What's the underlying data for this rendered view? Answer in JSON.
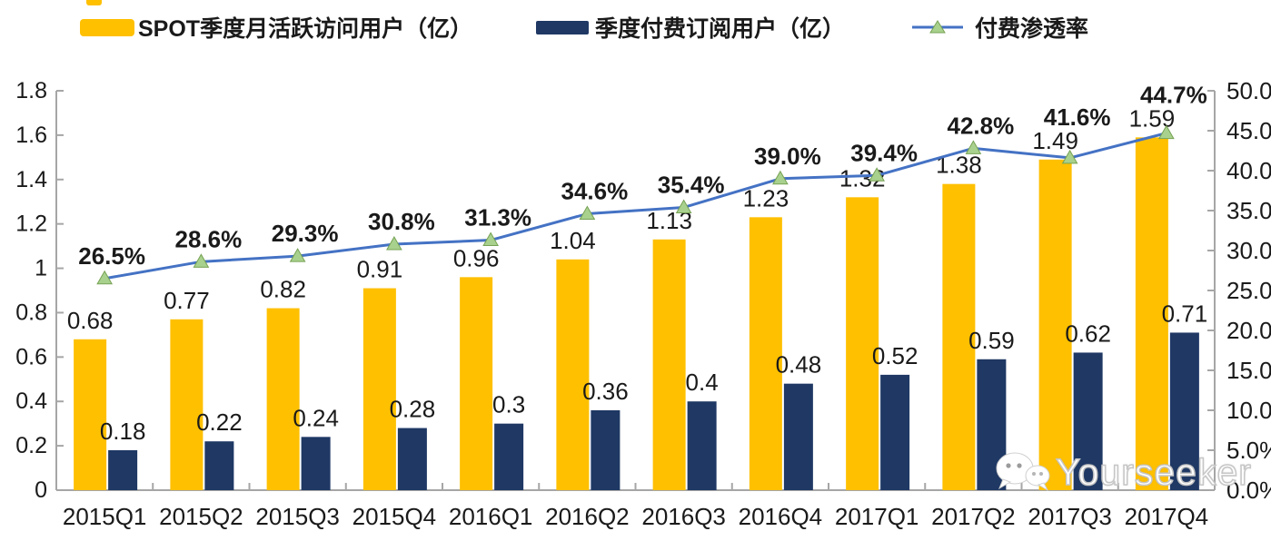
{
  "legend": {
    "items": [
      {
        "label": "SPOT季度月活跃访问用户（亿）",
        "swatch": "bar",
        "color": "#FFC000"
      },
      {
        "label": "季度付费订阅用户（亿）",
        "swatch": "bar",
        "color": "#1F3864"
      },
      {
        "label": "付费渗透率",
        "swatch": "line-triangle-marker",
        "color": "#4472C4",
        "marker_color": "#A9D18E"
      }
    ]
  },
  "chart_data": {
    "type": "combo bar+line",
    "categories": [
      "2015Q1",
      "2015Q2",
      "2015Q3",
      "2015Q4",
      "2016Q1",
      "2016Q2",
      "2016Q3",
      "2016Q4",
      "2017Q1",
      "2017Q2",
      "2017Q3",
      "2017Q4"
    ],
    "series": [
      {
        "name": "SPOT季度月活跃访问用户（亿）",
        "type": "bar",
        "axis": "left",
        "color": "#FFC000",
        "values": [
          0.68,
          0.77,
          0.82,
          0.91,
          0.96,
          1.04,
          1.13,
          1.23,
          1.32,
          1.38,
          1.49,
          1.59
        ]
      },
      {
        "name": "季度付费订阅用户（亿）",
        "type": "bar",
        "axis": "left",
        "color": "#1F3864",
        "values": [
          0.18,
          0.22,
          0.24,
          0.28,
          0.3,
          0.36,
          0.4,
          0.48,
          0.52,
          0.59,
          0.62,
          0.71
        ]
      },
      {
        "name": "付费渗透率",
        "type": "line",
        "axis": "right",
        "color": "#4472C4",
        "marker": "triangle",
        "marker_color": "#A9D18E",
        "marker_stroke": "#76A254",
        "values": [
          26.5,
          28.6,
          29.3,
          30.8,
          31.3,
          34.6,
          35.4,
          39.0,
          39.4,
          42.8,
          41.6,
          44.7
        ],
        "labels": [
          "26.5%",
          "28.6%",
          "29.3%",
          "30.8%",
          "31.3%",
          "34.6%",
          "35.4%",
          "39.0%",
          "39.4%",
          "42.8%",
          "41.6%",
          "44.7%"
        ]
      }
    ],
    "left_axis": {
      "min": 0,
      "max": 1.8,
      "tick_labels": [
        "0",
        "0.2",
        "0.4",
        "0.6",
        "0.8",
        "1",
        "1.2",
        "1.4",
        "1.6",
        "1.8"
      ]
    },
    "right_axis": {
      "min": 0,
      "max": 50,
      "tick_labels": [
        "0.0%",
        "5.0%",
        "10.0%",
        "15.0%",
        "20.0%",
        "25.0%",
        "30.0%",
        "35.0%",
        "40.0%",
        "45.0%",
        "50.0%"
      ]
    },
    "grid": false,
    "legend_position": "top",
    "axis_color": "#A6A6A6",
    "text_color": "#1a1a1a"
  },
  "watermark": {
    "text": "Yourseeker",
    "icon": "wechat-chat-bubbles-icon"
  }
}
